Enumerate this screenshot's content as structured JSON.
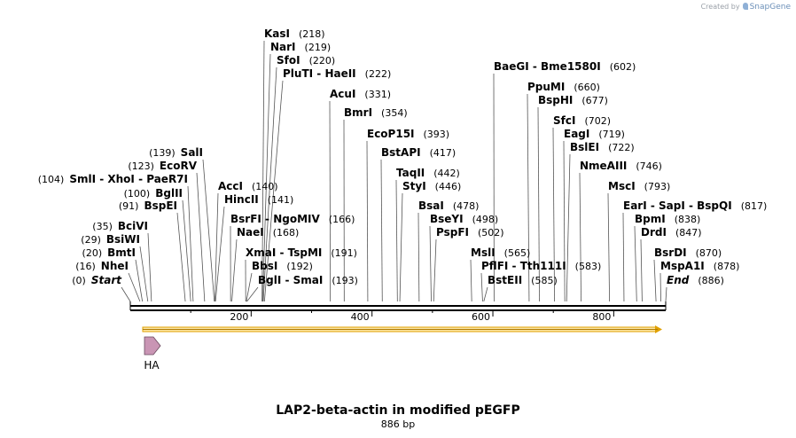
{
  "credit": {
    "prefix": "Created by",
    "brand": "SnapGene"
  },
  "map": {
    "title": "LAP2-beta-actin in modified pEGFP",
    "length_label": "886 bp",
    "length_bp": 886,
    "axis_ticks": [
      200,
      400,
      600,
      800
    ],
    "feature": {
      "label": "HA",
      "start_bp": 0,
      "end_bp": 32,
      "color": "#c995b4"
    },
    "orf_color": "#f0a800"
  },
  "enzymes": [
    {
      "name": "Start",
      "pos": "(0)",
      "bp": 0,
      "italic": true
    },
    {
      "name": "NheI",
      "pos": "(16)",
      "bp": 16
    },
    {
      "name": "BmtI",
      "pos": "(20)",
      "bp": 20
    },
    {
      "name": "BsiWI",
      "pos": "(29)",
      "bp": 29
    },
    {
      "name": "BciVI",
      "pos": "(35)",
      "bp": 35
    },
    {
      "name": "BspEI",
      "pos": "(91)",
      "bp": 91
    },
    {
      "name": "BglII",
      "pos": "(100)",
      "bp": 100
    },
    {
      "name": "SmlI - XhoI - PaeR7I",
      "pos": "(104)",
      "bp": 104
    },
    {
      "name": "EcoRV",
      "pos": "(123)",
      "bp": 123
    },
    {
      "name": "SalI",
      "pos": "(139)",
      "bp": 139
    },
    {
      "name": "AccI",
      "pos": "(140)",
      "bp": 140
    },
    {
      "name": "HincII",
      "pos": "(141)",
      "bp": 141
    },
    {
      "name": "BsrFI - NgoMIV",
      "pos": "(166)",
      "bp": 166
    },
    {
      "name": "NaeI",
      "pos": "(168)",
      "bp": 168
    },
    {
      "name": "XmaI - TspMI",
      "pos": "(191)",
      "bp": 191
    },
    {
      "name": "BbsI",
      "pos": "(192)",
      "bp": 192
    },
    {
      "name": "BglI - SmaI",
      "pos": "(193)",
      "bp": 193
    },
    {
      "name": "KasI",
      "pos": "(218)",
      "bp": 218
    },
    {
      "name": "NarI",
      "pos": "(219)",
      "bp": 219
    },
    {
      "name": "SfoI",
      "pos": "(220)",
      "bp": 220
    },
    {
      "name": "PluTI - HaeII",
      "pos": "(222)",
      "bp": 222
    },
    {
      "name": "AcuI",
      "pos": "(331)",
      "bp": 331
    },
    {
      "name": "BmrI",
      "pos": "(354)",
      "bp": 354
    },
    {
      "name": "EcoP15I",
      "pos": "(393)",
      "bp": 393
    },
    {
      "name": "BstAPI",
      "pos": "(417)",
      "bp": 417
    },
    {
      "name": "TaqII",
      "pos": "(442)",
      "bp": 442
    },
    {
      "name": "StyI",
      "pos": "(446)",
      "bp": 446
    },
    {
      "name": "BsaI",
      "pos": "(478)",
      "bp": 478
    },
    {
      "name": "BseYI",
      "pos": "(498)",
      "bp": 498
    },
    {
      "name": "PspFI",
      "pos": "(502)",
      "bp": 502
    },
    {
      "name": "MslI",
      "pos": "(565)",
      "bp": 565
    },
    {
      "name": "PflFI - Tth111I",
      "pos": "(583)",
      "bp": 583
    },
    {
      "name": "BstEII",
      "pos": "(585)",
      "bp": 585
    },
    {
      "name": "BaeGI - Bme1580I",
      "pos": "(602)",
      "bp": 602
    },
    {
      "name": "PpuMI",
      "pos": "(660)",
      "bp": 660
    },
    {
      "name": "BspHI",
      "pos": "(677)",
      "bp": 677
    },
    {
      "name": "SfcI",
      "pos": "(702)",
      "bp": 702
    },
    {
      "name": "EagI",
      "pos": "(719)",
      "bp": 719
    },
    {
      "name": "BslEI",
      "pos": "(722)",
      "bp": 722
    },
    {
      "name": "NmeAIII",
      "pos": "(746)",
      "bp": 746
    },
    {
      "name": "MscI",
      "pos": "(793)",
      "bp": 793
    },
    {
      "name": "EarI - SapI - BspQI",
      "pos": "(817)",
      "bp": 817
    },
    {
      "name": "BpmI",
      "pos": "(838)",
      "bp": 838
    },
    {
      "name": "DrdI",
      "pos": "(847)",
      "bp": 847
    },
    {
      "name": "BsrDI",
      "pos": "(870)",
      "bp": 870
    },
    {
      "name": "MspA1I",
      "pos": "(878)",
      "bp": 878
    },
    {
      "name": "End",
      "pos": "(886)",
      "bp": 886,
      "italic": true
    }
  ]
}
